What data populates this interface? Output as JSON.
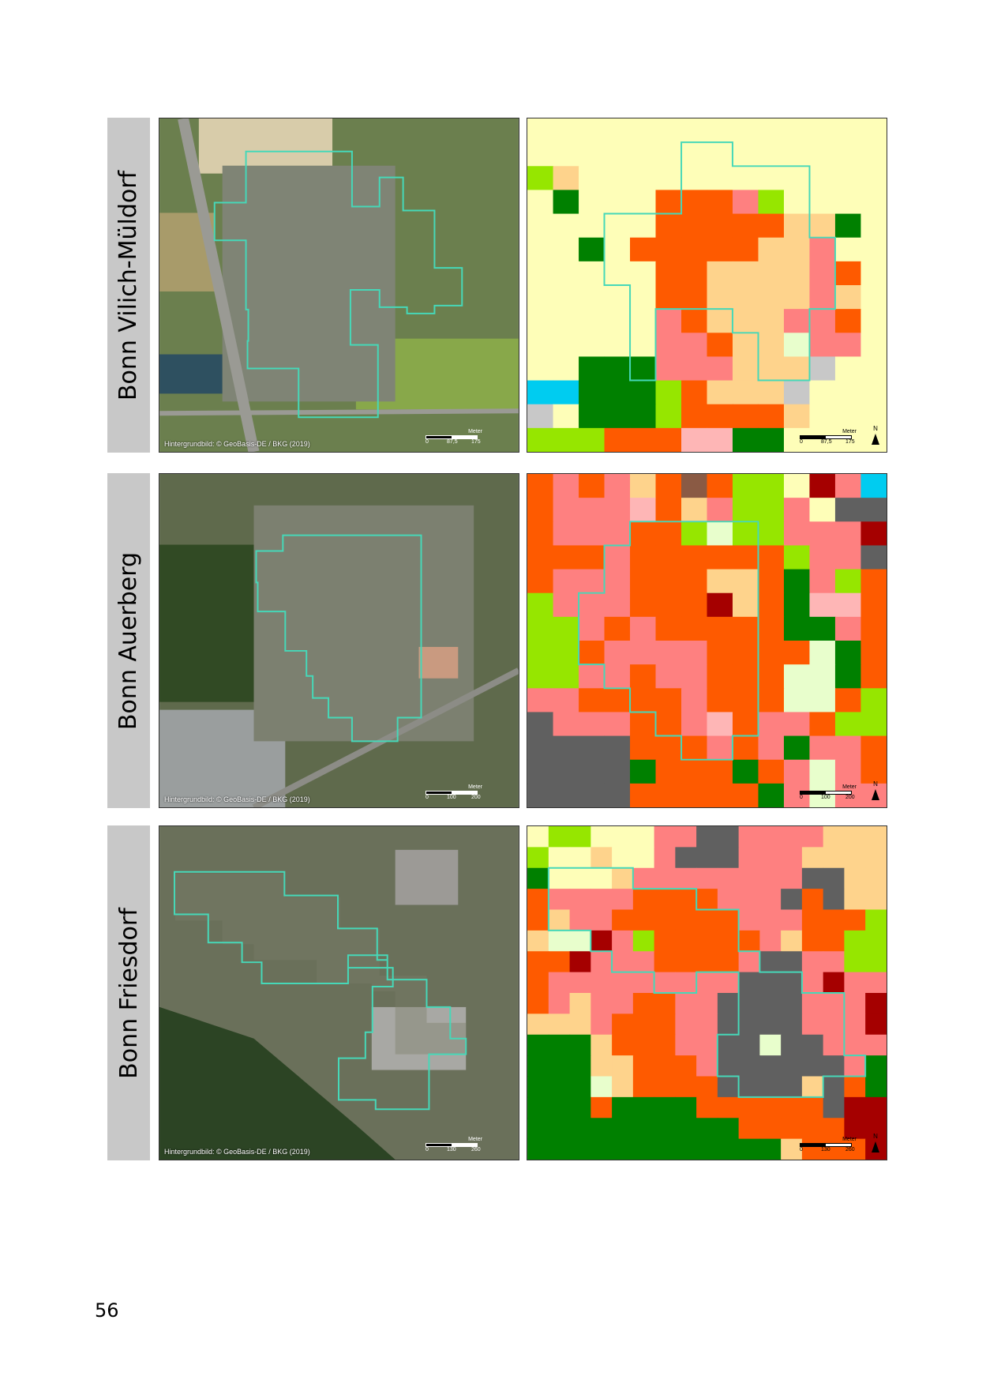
{
  "page_number": "56",
  "panels": [
    {
      "label": "Bonn Vilich-Müldorf",
      "credit": "Hintergrundbild: © GeoBasis-DE / BKG (2019)",
      "scale": {
        "unit": "Meter",
        "ticks": [
          "0",
          "87,5",
          "175"
        ]
      },
      "north": "N"
    },
    {
      "label": "Bonn Auerberg",
      "credit": "Hintergrundbild: © GeoBasis-DE / BKG (2019)",
      "scale": {
        "unit": "Meter",
        "ticks": [
          "0",
          "100",
          "200"
        ]
      },
      "north": "N"
    },
    {
      "label": "Bonn Friesdorf",
      "credit": "Hintergrundbild: © GeoBasis-DE / BKG (2019)",
      "scale": {
        "unit": "Meter",
        "ticks": [
          "0",
          "130",
          "260"
        ]
      },
      "north": "N"
    }
  ],
  "colors": {
    "background": "#ffffff",
    "label_box": "#c8c8c8",
    "outline": "#46d8b8",
    "palette": {
      "A": "#fefeb8",
      "B": "#fe5a00",
      "C": "#fe8080",
      "D": "#fed38c",
      "E": "#feb6b6",
      "F": "#008000",
      "G": "#96e600",
      "H": "#e8fecc",
      "I": "#606060",
      "J": "#a50000",
      "K": "#00ccf0",
      "L": "#c8c8c8",
      "M": "#8a5a44"
    }
  }
}
